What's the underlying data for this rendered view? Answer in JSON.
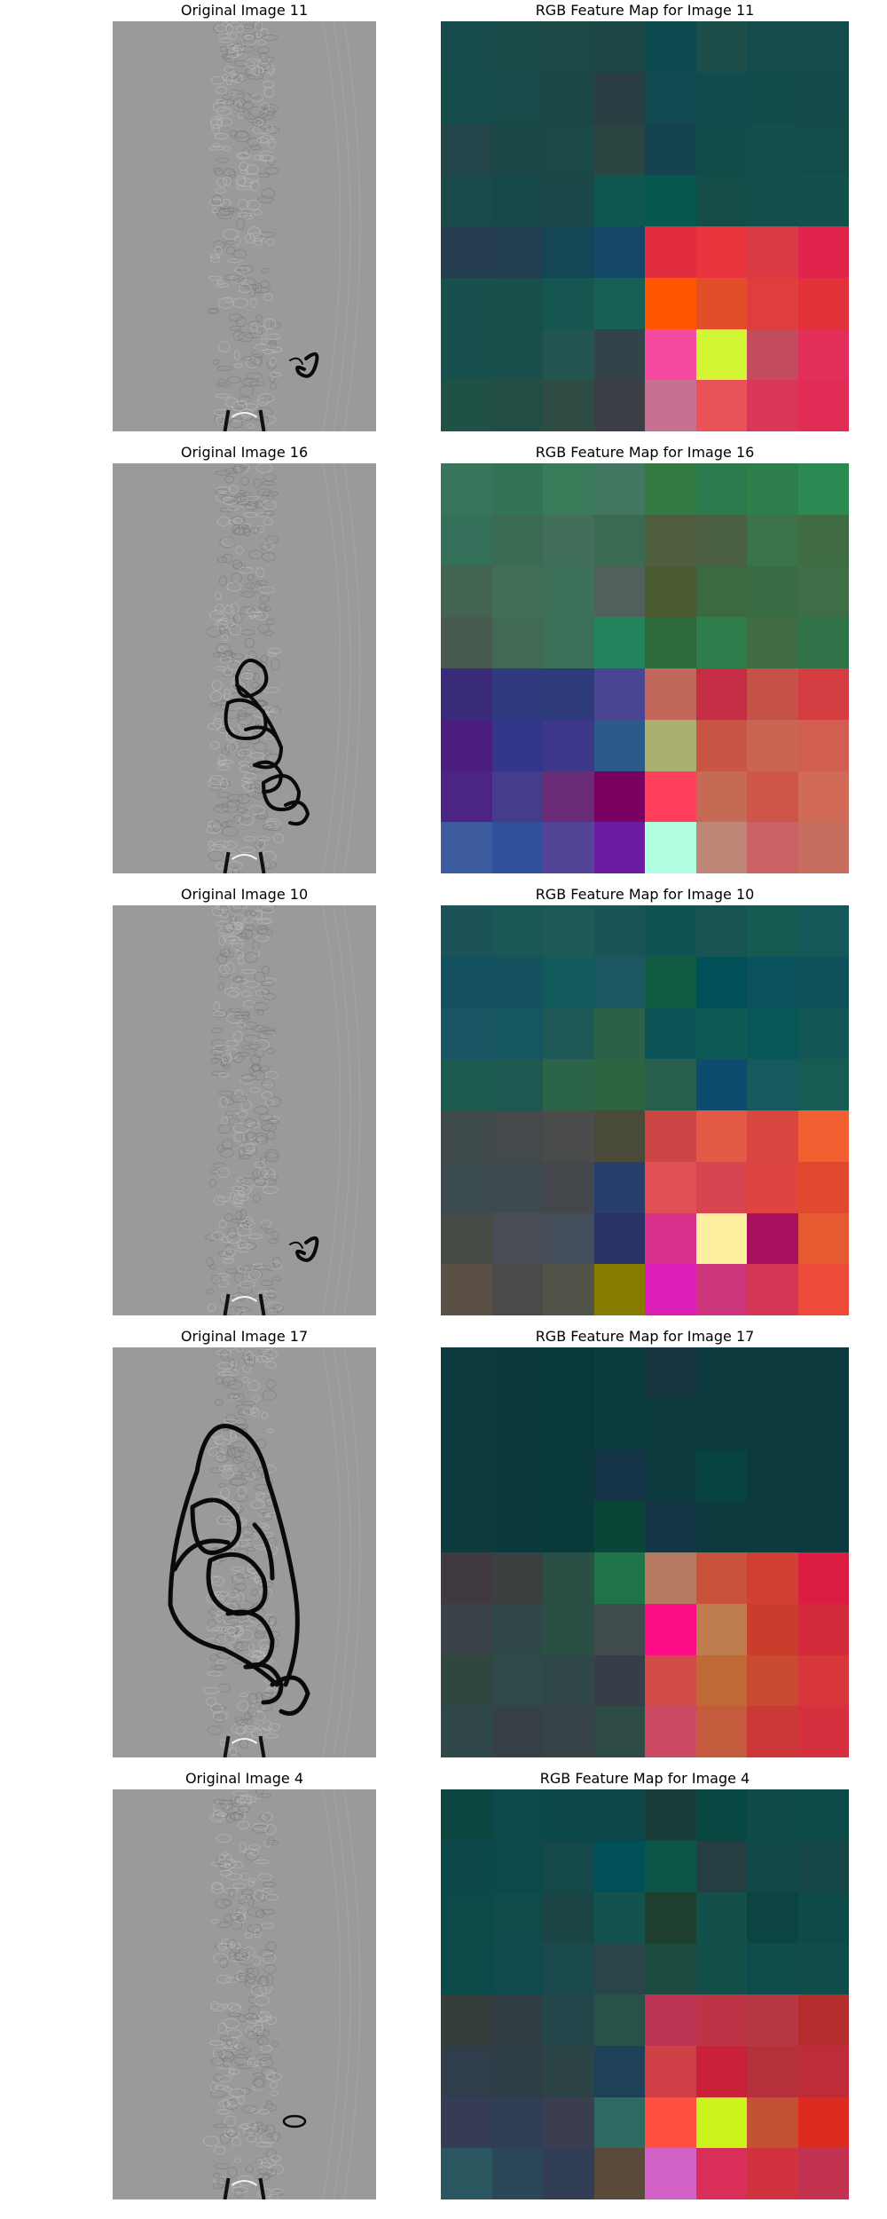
{
  "panels": [
    {
      "orig_title": "Original Image 11",
      "map_title": "RGB Feature Map for Image 11",
      "blob": "small",
      "colors": [
        "#174a4a",
        "#1a4a48",
        "#1b4946",
        "#1c4646",
        "#0d4a4f",
        "#1c4d48",
        "#154b4a",
        "#154b4a",
        "#134c49",
        "#174a48",
        "#1b4746",
        "#283e42",
        "#114a50",
        "#114b4f",
        "#124b4b",
        "#144a4a",
        "#22454a",
        "#1b4746",
        "#1b4946",
        "#2a4542",
        "#13444e",
        "#104c49",
        "#124e4b",
        "#124d4a",
        "#1a4a4a",
        "#17494a",
        "#1a4747",
        "#0f5551",
        "#07594f",
        "#144d47",
        "#134e4a",
        "#13504b",
        "#243e50",
        "#223f52",
        "#154656",
        "#154769",
        "#e22d3f",
        "#e8343d",
        "#da3a43",
        "#e0234a",
        "#17504d",
        "#1a4e4b",
        "#155650",
        "#176054",
        "#ff5500",
        "#e24e2a",
        "#e03e3c",
        "#e23139",
        "#17504d",
        "#1a4f4b",
        "#225450",
        "#33434a",
        "#f44aa0",
        "#d2f534",
        "#c34b5e",
        "#e12e5a",
        "#1f5147",
        "#234e45",
        "#2f4c44",
        "#3d3f47",
        "#c76f90",
        "#e95257",
        "#d93757",
        "#e12c55"
      ]
    },
    {
      "orig_title": "Original Image 16",
      "map_title": "RGB Feature Map for Image 16",
      "blob": "medium",
      "colors": [
        "#37765b",
        "#337355",
        "#387c59",
        "#427861",
        "#337a43",
        "#2b7a4e",
        "#2c7e4b",
        "#2a8a51",
        "#346f5a",
        "#3c6b54",
        "#426f5a",
        "#3a6a51",
        "#4e5e3f",
        "#4a5f3f",
        "#3c7247",
        "#3f6c42",
        "#436450",
        "#406f56",
        "#3d7059",
        "#51605a",
        "#4b5b30",
        "#3b6a41",
        "#3a6c43",
        "#3e6e45",
        "#485a4f",
        "#416a52",
        "#3d7059",
        "#22845c",
        "#2e6a3a",
        "#2e7e4c",
        "#3f6c42",
        "#2f7248",
        "#3a2b7a",
        "#2f3a80",
        "#2d3b7a",
        "#4a4592",
        "#c1685b",
        "#c52d45",
        "#c55149",
        "#d33d42",
        "#4a1d7e",
        "#33378a",
        "#3d388a",
        "#2a5b8a",
        "#aab070",
        "#c85644",
        "#c96551",
        "#d05e51",
        "#4c2483",
        "#433d8c",
        "#6b2c77",
        "#7a0061",
        "#ff3f5b",
        "#c56a55",
        "#cd5549",
        "#d16a56",
        "#3d5ca0",
        "#2f509b",
        "#544497",
        "#6b1ca1",
        "#b0ffe0",
        "#bd8676",
        "#cb6366",
        "#c86e60"
      ]
    },
    {
      "orig_title": "Original Image 10",
      "map_title": "RGB Feature Map for Image 10",
      "blob": "small",
      "colors": [
        "#1c5359",
        "#1a5757",
        "#1d5a55",
        "#1b5457",
        "#105352",
        "#1a5452",
        "#175a52",
        "#16585a",
        "#135060",
        "#165160",
        "#115b5c",
        "#1b5762",
        "#125d41",
        "#015058",
        "#0b535c",
        "#10525c",
        "#175563",
        "#165660",
        "#1f5957",
        "#2c6047",
        "#0c5455",
        "#0e5a56",
        "#085759",
        "#125656",
        "#1c5b50",
        "#1d5950",
        "#2b6446",
        "#2e6441",
        "#275e4c",
        "#0d4c6f",
        "#165a5e",
        "#175b53",
        "#3f4a4a",
        "#444a4c",
        "#4a4c4c",
        "#494a3a",
        "#cc4545",
        "#e25a45",
        "#d8473f",
        "#f06030",
        "#3a4a4e",
        "#3d4a4f",
        "#44474c",
        "#283e6a",
        "#e05054",
        "#d64550",
        "#de4540",
        "#e0492f",
        "#464b46",
        "#494d55",
        "#444d5a",
        "#2a3265",
        "#d6308a",
        "#ffefa0",
        "#a7115e",
        "#e65a32",
        "#5a5046",
        "#4c4a48",
        "#505448",
        "#877c00",
        "#db1fb6",
        "#cd357d",
        "#d53655",
        "#ed4a3a"
      ]
    },
    {
      "orig_title": "Original Image 17",
      "map_title": "RGB Feature Map for Image 17",
      "blob": "large",
      "colors": [
        "#0c3a3e",
        "#0b393d",
        "#0a393c",
        "#0b3c3e",
        "#173641",
        "#0c3a3e",
        "#0c3a3e",
        "#0c3a3e",
        "#0c3a3e",
        "#0b393d",
        "#0a393c",
        "#0b3c3e",
        "#0d3a3d",
        "#0c3a3e",
        "#0c3a3e",
        "#0c3a3e",
        "#0c3a3e",
        "#0b393d",
        "#0a393c",
        "#163447",
        "#0c3a3e",
        "#07433f",
        "#0c3a3e",
        "#0c3a3e",
        "#0c3a3e",
        "#0b393d",
        "#0a393c",
        "#084638",
        "#163645",
        "#0c3a3e",
        "#0c3a3e",
        "#0c3a3e",
        "#403a40",
        "#3a4040",
        "#2a5046",
        "#1f7549",
        "#b57a60",
        "#c9523a",
        "#d13f33",
        "#dc1c40",
        "#394348",
        "#30484a",
        "#2a5046",
        "#404b4e",
        "#ff0d88",
        "#bf7c4f",
        "#c93d2d",
        "#d32b3b",
        "#30473f",
        "#2f4a4a",
        "#30474a",
        "#373e47",
        "#d34b46",
        "#bf6936",
        "#c84a30",
        "#d7363a",
        "#30484a",
        "#374047",
        "#384348",
        "#2f4b45",
        "#cc4a61",
        "#c45b3d",
        "#cc3737",
        "#d5303d"
      ]
    },
    {
      "orig_title": "Original Image 4",
      "map_title": "RGB Feature Map for Image 4",
      "blob": "tiny",
      "colors": [
        "#0c4641",
        "#0b4a4a",
        "#0c484a",
        "#0c484a",
        "#1b3d39",
        "#074842",
        "#104a48",
        "#0c4a48",
        "#0c484a",
        "#0a4a4c",
        "#154949",
        "#00505a",
        "#0c5648",
        "#253e42",
        "#114848",
        "#164545",
        "#0c4a4a",
        "#0e4b4a",
        "#1b4544",
        "#12544d",
        "#1e3e2e",
        "#14504a",
        "#0c4444",
        "#0d4a48",
        "#0c4a4a",
        "#0f4a4c",
        "#1a4a4e",
        "#2a464b",
        "#1c4a40",
        "#13504a",
        "#0e4c4c",
        "#0f4c4a",
        "#343c3c",
        "#303e43",
        "#24474c",
        "#275248",
        "#bc3456",
        "#be3446",
        "#b73843",
        "#b52d2d",
        "#303e4c",
        "#2f3e46",
        "#2c4346",
        "#1f4158",
        "#ce4046",
        "#c92139",
        "#b6303c",
        "#bd2c38",
        "#373c56",
        "#303e56",
        "#3a3e50",
        "#2e6a62",
        "#ff5040",
        "#ccf21c",
        "#c25233",
        "#dd2b1f",
        "#2a5660",
        "#2c4858",
        "#323e55",
        "#5a4a3a",
        "#d262c8",
        "#d92d5a",
        "#d1333e",
        "#c23251"
      ]
    }
  ]
}
